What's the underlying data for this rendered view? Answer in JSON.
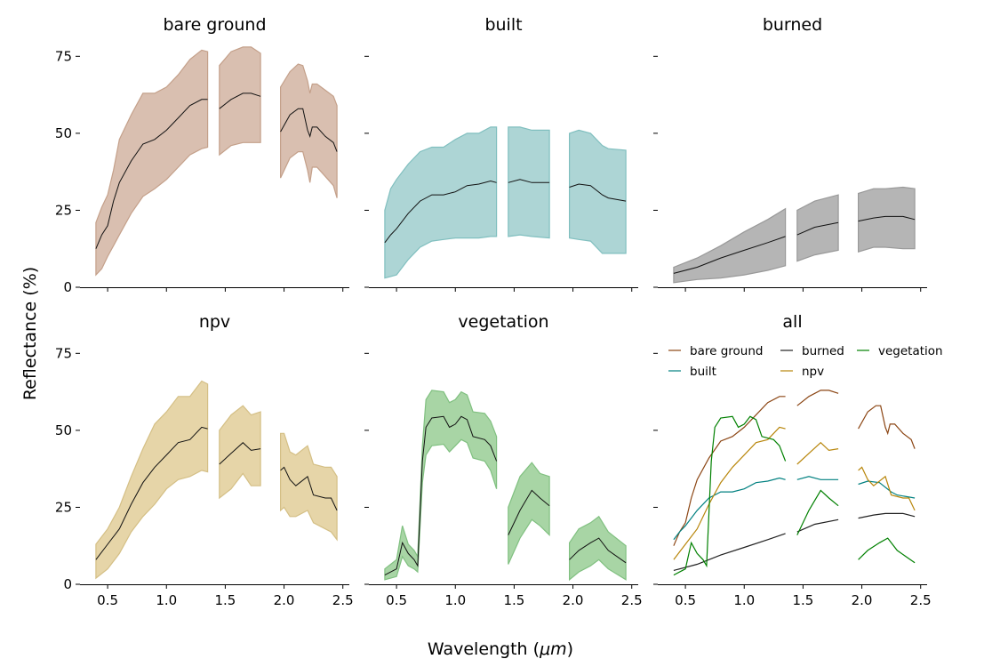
{
  "chart_data": {
    "type": "line",
    "xlabel": "Wavelength ($\\mu m$)",
    "xlabel_display": [
      "Wavelength (",
      "μm",
      ")"
    ],
    "ylabel": "Reflectance (%)",
    "xlim": [
      0.265,
      2.555
    ],
    "ylim": [
      0,
      80
    ],
    "xticks": [
      0.5,
      1.0,
      1.5,
      2.0,
      2.5
    ],
    "xtick_labels": [
      "0.5",
      "1.0",
      "1.5",
      "2.0",
      "2.5"
    ],
    "yticks": [
      0,
      25,
      50,
      75
    ],
    "ytick_labels": [
      "0",
      "25",
      "50",
      "75"
    ],
    "grid": false,
    "panels": [
      {
        "title": "bare ground",
        "fill": "#d9bfb0",
        "edge": "#c4a08a",
        "line": "#8b4513",
        "segments": [
          {
            "x": [
              0.4,
              0.45,
              0.5,
              0.55,
              0.6,
              0.7,
              0.8,
              0.9,
              1.0,
              1.1,
              1.2,
              1.3,
              1.35
            ],
            "mean": [
              12.5,
              17,
              20,
              28,
              34,
              41,
              46.5,
              48,
              51,
              55,
              59,
              61,
              61
            ],
            "upper": [
              21,
              26,
              30,
              38,
              48,
              56,
              63,
              63,
              65,
              69,
              74,
              77,
              76.5
            ],
            "lower": [
              4,
              6,
              10,
              13.5,
              17,
              24,
              29.5,
              32,
              35,
              39,
              43,
              45,
              45.5
            ]
          },
          {
            "x": [
              1.45,
              1.55,
              1.65,
              1.72,
              1.8
            ],
            "mean": [
              58,
              61,
              63,
              63,
              62
            ],
            "upper": [
              72,
              76.5,
              78,
              78,
              76
            ],
            "lower": [
              43,
              46,
              47,
              47,
              47
            ]
          },
          {
            "x": [
              1.97,
              2.05,
              2.12,
              2.16,
              2.2,
              2.22,
              2.24,
              2.28,
              2.35,
              2.42,
              2.45
            ],
            "mean": [
              50.5,
              56,
              58,
              58,
              51,
              49,
              52,
              52,
              49,
              47,
              44
            ],
            "upper": [
              65,
              70,
              72.5,
              72,
              67,
              63,
              66,
              66,
              64,
              62,
              59
            ],
            "lower": [
              35.5,
              42,
              44,
              44,
              38,
              34,
              39,
              39,
              36,
              33,
              29
            ]
          }
        ]
      },
      {
        "title": "built",
        "fill": "#add5d5",
        "edge": "#80bfbf",
        "line": "#008080",
        "segments": [
          {
            "x": [
              0.4,
              0.45,
              0.5,
              0.6,
              0.7,
              0.8,
              0.9,
              1.0,
              1.1,
              1.2,
              1.3,
              1.35
            ],
            "mean": [
              14.5,
              17,
              19,
              24,
              28,
              30,
              30,
              31,
              33,
              33.5,
              34.5,
              34
            ],
            "upper": [
              25,
              32,
              35,
              40,
              44,
              45.5,
              45.5,
              48,
              50,
              50,
              52,
              52
            ],
            "lower": [
              3,
              3.5,
              4,
              9,
              13,
              15,
              15.5,
              16,
              16,
              16,
              16.5,
              16.5
            ]
          },
          {
            "x": [
              1.45,
              1.55,
              1.65,
              1.8
            ],
            "mean": [
              34,
              35,
              34,
              34
            ],
            "upper": [
              52,
              52,
              51,
              51
            ],
            "lower": [
              16.5,
              17,
              16.5,
              16
            ]
          },
          {
            "x": [
              1.97,
              2.05,
              2.15,
              2.25,
              2.3,
              2.45
            ],
            "mean": [
              32.5,
              33.5,
              33,
              30,
              29,
              28
            ],
            "upper": [
              50,
              51,
              50,
              46,
              45,
              44.5
            ],
            "lower": [
              16,
              15.5,
              15,
              11,
              11,
              11
            ]
          }
        ]
      },
      {
        "title": "burned",
        "fill": "#b5b5b5",
        "edge": "#999999",
        "line": "#222222",
        "segments": [
          {
            "x": [
              0.4,
              0.6,
              0.8,
              1.0,
              1.2,
              1.35
            ],
            "mean": [
              4.5,
              6.5,
              9.5,
              12,
              14.5,
              16.5
            ],
            "upper": [
              6.5,
              9.5,
              13.5,
              18,
              22,
              25.5
            ],
            "lower": [
              1.5,
              2.5,
              3,
              4,
              5.5,
              7
            ]
          },
          {
            "x": [
              1.45,
              1.6,
              1.8
            ],
            "mean": [
              17,
              19.5,
              21
            ],
            "upper": [
              25,
              28,
              30
            ],
            "lower": [
              8.5,
              10.5,
              12
            ]
          },
          {
            "x": [
              1.97,
              2.1,
              2.2,
              2.35,
              2.45
            ],
            "mean": [
              21.5,
              22.5,
              23,
              23,
              22
            ],
            "upper": [
              30.5,
              32,
              32,
              32.5,
              32
            ],
            "lower": [
              11.5,
              13,
              13,
              12.5,
              12.5
            ]
          }
        ]
      },
      {
        "title": "npv",
        "fill": "#e6d5a8",
        "edge": "#d4bf85",
        "line": "#b8860b",
        "segments": [
          {
            "x": [
              0.4,
              0.5,
              0.6,
              0.7,
              0.8,
              0.9,
              1.0,
              1.1,
              1.2,
              1.3,
              1.35
            ],
            "mean": [
              8,
              13,
              18,
              26,
              33,
              38,
              42,
              46,
              47,
              51,
              50.5
            ],
            "upper": [
              13,
              18,
              25,
              35,
              44,
              52,
              56,
              61,
              61,
              66,
              65
            ],
            "lower": [
              2,
              5,
              10,
              17,
              22,
              26,
              31,
              34,
              35,
              37,
              36.5
            ]
          },
          {
            "x": [
              1.45,
              1.55,
              1.65,
              1.72,
              1.8
            ],
            "mean": [
              39,
              42.5,
              46,
              43.5,
              44
            ],
            "upper": [
              50,
              55,
              58,
              55,
              56
            ],
            "lower": [
              28,
              31,
              36,
              32,
              32
            ]
          },
          {
            "x": [
              1.97,
              2.0,
              2.05,
              2.1,
              2.2,
              2.25,
              2.35,
              2.4,
              2.45
            ],
            "mean": [
              37,
              38,
              34,
              32,
              35,
              29,
              28,
              28,
              24
            ],
            "upper": [
              49,
              49,
              43,
              42,
              45,
              39,
              38,
              38,
              35
            ],
            "lower": [
              24,
              25,
              22,
              22,
              24,
              20,
              18,
              17,
              14.5
            ]
          }
        ]
      },
      {
        "title": "vegetation",
        "fill": "#a8d5a5",
        "edge": "#80c080",
        "line": "#008000",
        "segments": [
          {
            "x": [
              0.4,
              0.5,
              0.55,
              0.6,
              0.65,
              0.68,
              0.72,
              0.75,
              0.8,
              0.9,
              0.95,
              1.0,
              1.05,
              1.1,
              1.15,
              1.25,
              1.3,
              1.35
            ],
            "mean": [
              3,
              5,
              13.5,
              10,
              8,
              6,
              40,
              51,
              54,
              54.5,
              51,
              52,
              54.5,
              53.5,
              48,
              47,
              45,
              40
            ],
            "upper": [
              5,
              8,
              19,
              13,
              11,
              9,
              45,
              60,
              63,
              62.5,
              59,
              60,
              62.5,
              61.5,
              56,
              55.5,
              53,
              48
            ],
            "lower": [
              1.5,
              2.5,
              9,
              6,
              5,
              4,
              33,
              42,
              45,
              45.5,
              43,
              45,
              47,
              46,
              41,
              40,
              37,
              31
            ]
          },
          {
            "x": [
              1.45,
              1.55,
              1.65,
              1.72,
              1.8
            ],
            "mean": [
              16,
              24,
              30.5,
              28,
              25.5
            ],
            "upper": [
              25,
              35,
              39.5,
              36,
              35
            ],
            "lower": [
              6.5,
              15,
              21,
              19,
              16
            ]
          },
          {
            "x": [
              1.97,
              2.05,
              2.15,
              2.22,
              2.3,
              2.45
            ],
            "mean": [
              8,
              11,
              13.5,
              15,
              11,
              7
            ],
            "upper": [
              13.5,
              18,
              20,
              22,
              17,
              12.5
            ],
            "lower": [
              1.5,
              4,
              6,
              8,
              5,
              1.5
            ]
          }
        ]
      },
      {
        "title": "all",
        "legend": [
          "bare ground",
          "built",
          "burned",
          "npv",
          "vegetation"
        ],
        "legend_position": "top"
      }
    ]
  }
}
